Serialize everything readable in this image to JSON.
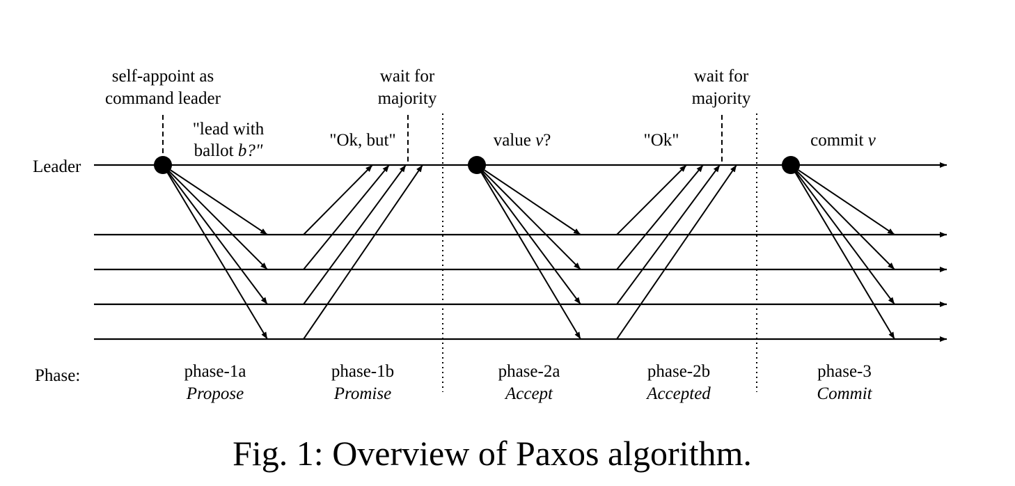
{
  "rows": {
    "leader": "Leader",
    "phase": "Phase:"
  },
  "annotations": {
    "self_appoint": [
      "self-appoint as",
      "command leader"
    ],
    "lead_with_ballot": "\"lead with",
    "ballot_word": "ballot ",
    "ballot_b": "b?\"",
    "wait_for_majority_1": [
      "wait for",
      "majority"
    ],
    "ok_but": "\"Ok, but\"",
    "value_prefix": "value ",
    "value_v": "v",
    "value_q": "?",
    "ok": "\"Ok\"",
    "wait_for_majority_2": [
      "wait for",
      "majority"
    ],
    "commit_prefix": "commit ",
    "commit_v": "v"
  },
  "phases": [
    {
      "id": "phase-1a",
      "name": "phase-1a",
      "role": "Propose"
    },
    {
      "id": "phase-1b",
      "name": "phase-1b",
      "role": "Promise"
    },
    {
      "id": "phase-2a",
      "name": "phase-2a",
      "role": "Accept"
    },
    {
      "id": "phase-2b",
      "name": "phase-2b",
      "role": "Accepted"
    },
    {
      "id": "phase-3",
      "name": "phase-3",
      "role": "Commit"
    }
  ],
  "caption": "Fig. 1: Overview of Paxos algorithm."
}
